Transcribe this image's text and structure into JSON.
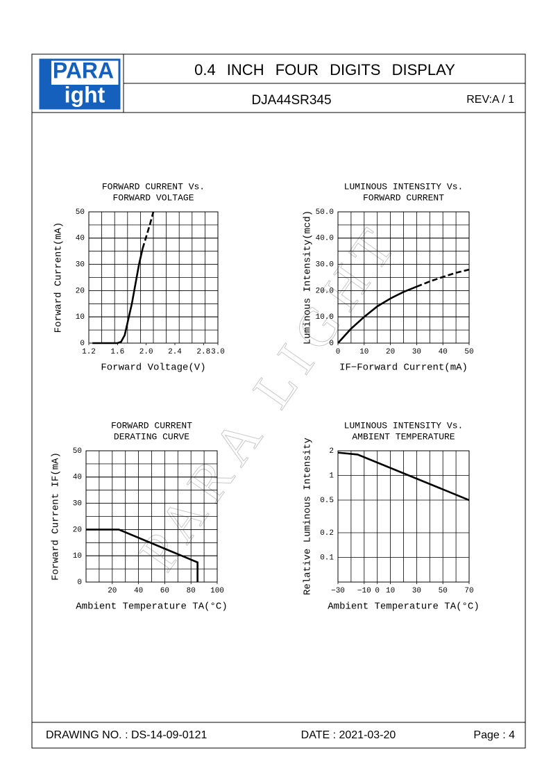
{
  "logo": {
    "top": "PARA",
    "bottom": "ight"
  },
  "header": {
    "title": "0.4 INCH FOUR DIGITS DISPLAY",
    "part_number": "DJA44SR345",
    "revision": "REV:A / 1"
  },
  "watermark": "PARA LIGHT",
  "chart_data": [
    {
      "type": "line",
      "title": [
        "FORWARD CURRENT Vs.",
        "FORWARD VOLTAGE"
      ],
      "x_label": "Forward Voltage(V)",
      "y_label": "Forward Current(mA)",
      "xlim": [
        1.2,
        3.0
      ],
      "xticks": [
        {
          "value": 1.2,
          "label": "1.2"
        },
        {
          "value": 1.6,
          "label": "1.6"
        },
        {
          "value": 2.0,
          "label": "2.0"
        },
        {
          "value": 2.4,
          "label": "2.4"
        },
        {
          "value": 2.8,
          "label": "2.8"
        },
        {
          "value": 3.0,
          "label": "3.0"
        }
      ],
      "ylim": [
        0,
        50
      ],
      "yticks": [
        0,
        10,
        20,
        30,
        40,
        50
      ],
      "series": [
        {
          "color": "#000000",
          "dash": false,
          "x": [
            1.25,
            1.6,
            1.65,
            1.7,
            1.8,
            1.9,
            1.95
          ],
          "values": [
            0,
            0,
            0.5,
            3,
            15,
            30,
            36
          ]
        },
        {
          "color": "#000000",
          "dash": true,
          "x": [
            1.95,
            2.05,
            2.1
          ],
          "values": [
            36,
            45,
            50
          ]
        }
      ]
    },
    {
      "type": "line",
      "title": [
        "LUMINOUS INTENSITY Vs.",
        "FORWARD CURRENT"
      ],
      "x_label": "IF−Forward Current(mA)",
      "y_label": "Luminous Intensity(mcd)",
      "xlim": [
        0,
        50
      ],
      "xticks": [
        0,
        10,
        20,
        30,
        40,
        50
      ],
      "ylim": [
        0,
        50
      ],
      "yticks": [
        0,
        {
          "value": 10,
          "label": "10.0"
        },
        {
          "value": 20,
          "label": "20.0"
        },
        {
          "value": 30,
          "label": "30.0"
        },
        {
          "value": 40,
          "label": "40.0"
        },
        {
          "value": 50,
          "label": "50.0"
        }
      ],
      "series": [
        {
          "color": "#000000",
          "dash": false,
          "x": [
            0,
            5,
            10,
            15,
            20,
            25,
            30
          ],
          "values": [
            0,
            5.5,
            10,
            14,
            17,
            19.5,
            21.5
          ]
        },
        {
          "color": "#000000",
          "dash": true,
          "x": [
            30,
            35,
            40,
            45,
            50
          ],
          "values": [
            21.5,
            23.5,
            25.2,
            26.8,
            28
          ]
        }
      ]
    },
    {
      "type": "line",
      "title": [
        "FORWARD CURRENT",
        "DERATING CURVE"
      ],
      "x_label": "Ambient Temperature TA(°C)",
      "y_label": "Forward Current IF(mA)",
      "xlim": [
        0,
        100
      ],
      "xticks": [
        20,
        40,
        60,
        80,
        100
      ],
      "ylim": [
        0,
        50
      ],
      "yticks": [
        0,
        10,
        20,
        30,
        40,
        50
      ],
      "series": [
        {
          "color": "#000000",
          "dash": false,
          "x": [
            0,
            25,
            85,
            85
          ],
          "values": [
            20,
            20,
            7.5,
            0
          ]
        }
      ]
    },
    {
      "type": "line",
      "title": [
        "LUMINOUS INTENSITY Vs.",
        "AMBIENT TEMPERATURE"
      ],
      "x_label": "Ambient Temperature TA(°C)",
      "y_label": "Relative Luminous Intensity",
      "log_y": true,
      "xlim": [
        -30,
        70
      ],
      "xticks": [
        {
          "value": -30,
          "label": "−30"
        },
        {
          "value": -10,
          "label": "−10"
        },
        0,
        10,
        30,
        50,
        70
      ],
      "ylim": [
        0.05,
        2
      ],
      "yticks": [
        0.1,
        0.2,
        0.5,
        1,
        2
      ],
      "series": [
        {
          "color": "#000000",
          "dash": false,
          "x": [
            -30,
            -15,
            70
          ],
          "values": [
            1.9,
            1.8,
            0.5
          ]
        }
      ]
    }
  ],
  "footer": {
    "drawing_no": "DRAWING NO. : DS-14-09-0121",
    "date": "DATE : 2021-03-20",
    "page": "Page : 4"
  }
}
